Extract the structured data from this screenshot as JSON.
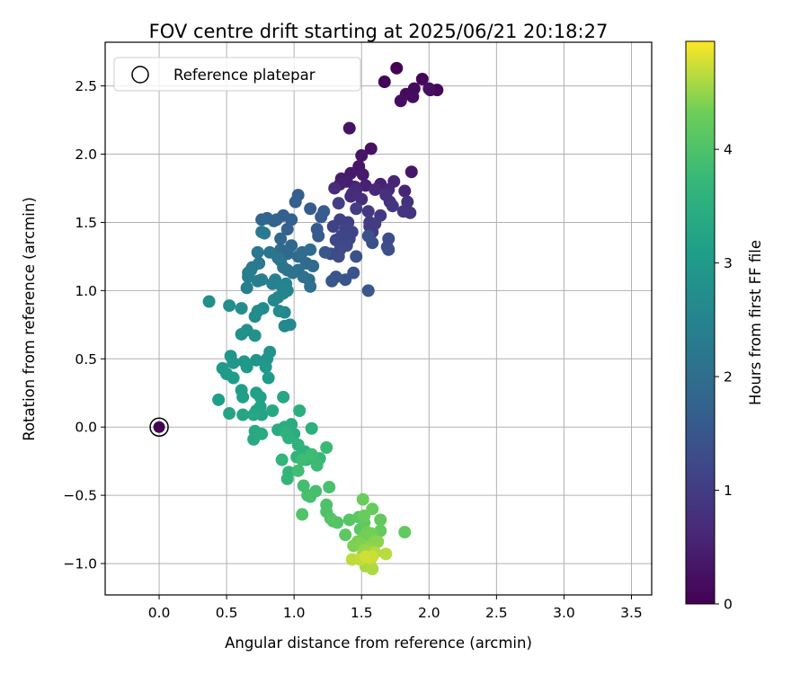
{
  "chart_data": {
    "type": "scatter",
    "title": "FOV centre drift starting at 2025/06/21 20:18:27",
    "xlabel": "Angular distance from reference (arcmin)",
    "ylabel": "Rotation from reference (arcmin)",
    "xlim": [
      -0.4,
      3.65
    ],
    "ylim": [
      -1.23,
      2.82
    ],
    "xticks": [
      "0.0",
      "0.5",
      "1.0",
      "1.5",
      "2.0",
      "2.5",
      "3.0",
      "3.5"
    ],
    "yticks": [
      "−1.0",
      "−0.5",
      "0.0",
      "0.5",
      "1.0",
      "1.5",
      "2.0",
      "2.5"
    ],
    "grid": true,
    "legend": {
      "location": "upper left",
      "entries": [
        "Reference platepar"
      ]
    },
    "colorbar": {
      "label": "Hours from first FF file",
      "range": [
        0,
        4.95
      ],
      "ticks": [
        "0",
        "1",
        "2",
        "3",
        "4"
      ],
      "colormap": "viridis"
    },
    "reference_point": {
      "x": 0.0,
      "y": 0.0,
      "c": 0.0
    },
    "points": [
      [
        1.76,
        2.63,
        0.02
      ],
      [
        1.67,
        2.53,
        0.05
      ],
      [
        1.95,
        2.55,
        0.08
      ],
      [
        2.06,
        2.47,
        0.1
      ],
      [
        2.01,
        2.47,
        0.12
      ],
      [
        1.89,
        2.48,
        0.14
      ],
      [
        1.83,
        2.44,
        0.17
      ],
      [
        1.88,
        2.42,
        0.19
      ],
      [
        1.79,
        2.39,
        0.21
      ],
      [
        2.0,
        2.48,
        0.24
      ],
      [
        1.57,
        2.04,
        0.26
      ],
      [
        1.41,
        2.19,
        0.28
      ],
      [
        1.5,
        1.99,
        0.31
      ],
      [
        1.48,
        1.91,
        0.33
      ],
      [
        1.87,
        1.87,
        0.35
      ],
      [
        1.42,
        1.86,
        0.38
      ],
      [
        1.51,
        1.85,
        0.4
      ],
      [
        1.35,
        1.82,
        0.42
      ],
      [
        1.39,
        1.8,
        0.45
      ],
      [
        1.34,
        1.78,
        0.47
      ],
      [
        1.45,
        1.76,
        0.49
      ],
      [
        1.53,
        1.77,
        0.51
      ],
      [
        1.64,
        1.78,
        0.53
      ],
      [
        1.74,
        1.8,
        0.56
      ],
      [
        1.82,
        1.73,
        0.58
      ],
      [
        1.7,
        1.74,
        0.6
      ],
      [
        1.6,
        1.74,
        0.63
      ],
      [
        1.46,
        1.74,
        0.65
      ],
      [
        1.42,
        1.69,
        0.67
      ],
      [
        1.3,
        1.75,
        0.7
      ],
      [
        1.43,
        1.71,
        0.72
      ],
      [
        1.5,
        1.67,
        0.74
      ],
      [
        1.71,
        1.65,
        0.77
      ],
      [
        1.68,
        1.7,
        0.79
      ],
      [
        1.84,
        1.65,
        0.81
      ],
      [
        1.83,
        1.59,
        0.83
      ],
      [
        1.86,
        1.57,
        0.85
      ],
      [
        1.81,
        1.58,
        0.87
      ],
      [
        1.73,
        1.62,
        0.89
      ],
      [
        1.64,
        1.55,
        0.91
      ],
      [
        1.55,
        1.58,
        0.93
      ],
      [
        1.56,
        1.5,
        0.95
      ],
      [
        1.56,
        1.47,
        0.97
      ],
      [
        1.58,
        1.43,
        0.99
      ],
      [
        1.6,
        1.49,
        1.01
      ],
      [
        1.46,
        1.6,
        1.03
      ],
      [
        1.33,
        1.64,
        1.05
      ],
      [
        1.4,
        1.5,
        1.07
      ],
      [
        1.34,
        1.52,
        1.09
      ],
      [
        1.29,
        1.47,
        1.11
      ],
      [
        1.38,
        1.45,
        1.13
      ],
      [
        1.43,
        1.43,
        1.15
      ],
      [
        1.35,
        1.4,
        1.17
      ],
      [
        1.41,
        1.38,
        1.19
      ],
      [
        1.31,
        1.37,
        1.21
      ],
      [
        1.39,
        1.33,
        1.23
      ],
      [
        1.34,
        1.3,
        1.25
      ],
      [
        1.27,
        1.27,
        1.27
      ],
      [
        1.33,
        1.25,
        1.29
      ],
      [
        1.7,
        1.38,
        1.31
      ],
      [
        1.69,
        1.32,
        1.33
      ],
      [
        1.7,
        1.3,
        1.35
      ],
      [
        1.58,
        1.35,
        1.37
      ],
      [
        1.55,
        1.4,
        1.39
      ],
      [
        1.46,
        1.25,
        1.41
      ],
      [
        1.44,
        1.13,
        1.43
      ],
      [
        1.38,
        1.08,
        1.45
      ],
      [
        1.31,
        1.1,
        1.47
      ],
      [
        1.28,
        1.07,
        1.49
      ],
      [
        1.55,
        1.0,
        1.51
      ],
      [
        1.23,
        1.28,
        1.53
      ],
      [
        1.18,
        1.4,
        1.55
      ],
      [
        1.17,
        1.45,
        1.57
      ],
      [
        1.2,
        1.54,
        1.59
      ],
      [
        1.12,
        1.6,
        1.61
      ],
      [
        1.22,
        1.58,
        1.63
      ],
      [
        1.03,
        1.7,
        1.65
      ],
      [
        1.01,
        1.65,
        1.67
      ],
      [
        0.92,
        1.55,
        1.69
      ],
      [
        0.98,
        1.52,
        1.71
      ],
      [
        0.95,
        1.45,
        1.73
      ],
      [
        0.87,
        1.52,
        1.75
      ],
      [
        0.85,
        1.51,
        1.77
      ],
      [
        0.8,
        1.53,
        1.79
      ],
      [
        0.76,
        1.52,
        1.81
      ],
      [
        0.9,
        1.38,
        1.83
      ],
      [
        0.98,
        1.33,
        1.85
      ],
      [
        0.9,
        1.3,
        1.87
      ],
      [
        0.95,
        1.27,
        1.89
      ],
      [
        1.03,
        1.25,
        1.91
      ],
      [
        1.09,
        1.2,
        1.93
      ],
      [
        1.14,
        1.18,
        1.95
      ],
      [
        1.12,
        1.3,
        1.97
      ],
      [
        1.06,
        1.28,
        1.99
      ],
      [
        1.03,
        1.15,
        2.01
      ],
      [
        1.11,
        1.08,
        2.03
      ],
      [
        1.07,
        1.1,
        2.05
      ],
      [
        1.12,
        1.03,
        2.07
      ],
      [
        0.99,
        1.13,
        2.09
      ],
      [
        0.95,
        1.15,
        2.11
      ],
      [
        0.92,
        1.17,
        2.13
      ],
      [
        0.9,
        1.22,
        2.15
      ],
      [
        0.88,
        1.24,
        2.17
      ],
      [
        0.82,
        1.28,
        2.19
      ],
      [
        0.73,
        1.28,
        2.21
      ],
      [
        0.76,
        1.43,
        2.23
      ],
      [
        0.78,
        1.42,
        2.25
      ],
      [
        0.74,
        1.2,
        2.27
      ],
      [
        0.69,
        1.17,
        2.29
      ],
      [
        0.68,
        1.15,
        2.31
      ],
      [
        0.66,
        1.13,
        2.33
      ],
      [
        0.66,
        1.1,
        2.35
      ],
      [
        0.76,
        1.08,
        2.37
      ],
      [
        0.73,
        1.07,
        2.39
      ],
      [
        0.65,
        1.02,
        2.41
      ],
      [
        0.84,
        1.05,
        2.43
      ],
      [
        0.86,
        1.08,
        2.45
      ],
      [
        0.91,
        1.03,
        2.47
      ],
      [
        0.94,
        1.05,
        2.49
      ],
      [
        0.95,
        1.0,
        2.51
      ],
      [
        0.92,
        0.98,
        2.53
      ],
      [
        0.88,
        0.95,
        2.55
      ],
      [
        0.85,
        0.93,
        2.57
      ],
      [
        0.93,
        0.84,
        2.59
      ],
      [
        0.97,
        0.75,
        2.61
      ],
      [
        0.93,
        0.74,
        2.63
      ],
      [
        0.89,
        0.85,
        2.65
      ],
      [
        0.77,
        0.87,
        2.67
      ],
      [
        0.73,
        0.85,
        2.69
      ],
      [
        0.71,
        0.81,
        2.71
      ],
      [
        0.61,
        0.87,
        2.73
      ],
      [
        0.52,
        0.89,
        2.75
      ],
      [
        0.37,
        0.92,
        2.77
      ],
      [
        0.65,
        0.71,
        2.79
      ],
      [
        0.61,
        0.68,
        2.81
      ],
      [
        0.71,
        0.67,
        2.83
      ],
      [
        0.82,
        0.55,
        2.85
      ],
      [
        0.8,
        0.5,
        2.87
      ],
      [
        0.72,
        0.49,
        2.89
      ],
      [
        0.53,
        0.52,
        2.91
      ],
      [
        0.55,
        0.47,
        2.93
      ],
      [
        0.63,
        0.48,
        2.95
      ],
      [
        0.65,
        0.44,
        2.97
      ],
      [
        0.79,
        0.44,
        2.99
      ],
      [
        0.81,
        0.36,
        3.01
      ],
      [
        0.47,
        0.43,
        3.03
      ],
      [
        0.5,
        0.39,
        3.05
      ],
      [
        0.55,
        0.36,
        3.07
      ],
      [
        0.44,
        0.2,
        3.09
      ],
      [
        0.62,
        0.22,
        3.11
      ],
      [
        0.61,
        0.27,
        3.13
      ],
      [
        0.72,
        0.25,
        3.15
      ],
      [
        0.75,
        0.22,
        3.17
      ],
      [
        0.75,
        0.15,
        3.19
      ],
      [
        0.72,
        0.12,
        3.21
      ],
      [
        0.76,
        0.09,
        3.23
      ],
      [
        0.52,
        0.1,
        3.25
      ],
      [
        0.62,
        0.09,
        3.27
      ],
      [
        0.7,
        0.09,
        3.29
      ],
      [
        0.92,
        0.22,
        3.31
      ],
      [
        0.84,
        0.12,
        3.33
      ],
      [
        0.71,
        -0.03,
        3.35
      ],
      [
        0.7,
        -0.09,
        3.37
      ],
      [
        0.76,
        -0.05,
        3.39
      ],
      [
        0.88,
        -0.02,
        3.41
      ],
      [
        0.93,
        0.0,
        3.43
      ],
      [
        0.98,
        0.02,
        3.45
      ],
      [
        1.0,
        -0.05,
        3.47
      ],
      [
        1.04,
        0.12,
        3.49
      ],
      [
        1.13,
        -0.01,
        3.51
      ],
      [
        0.94,
        -0.04,
        3.53
      ],
      [
        0.96,
        -0.08,
        3.55
      ],
      [
        1.03,
        -0.13,
        3.57
      ],
      [
        1.08,
        -0.18,
        3.59
      ],
      [
        1.02,
        -0.22,
        3.61
      ],
      [
        0.91,
        -0.24,
        3.63
      ],
      [
        0.96,
        -0.33,
        3.65
      ],
      [
        0.95,
        -0.38,
        3.67
      ],
      [
        1.17,
        -0.26,
        3.69
      ],
      [
        1.09,
        -0.24,
        3.71
      ],
      [
        1.14,
        -0.22,
        3.73
      ],
      [
        1.19,
        -0.23,
        3.75
      ],
      [
        1.24,
        -0.15,
        3.77
      ],
      [
        1.17,
        -0.28,
        3.79
      ],
      [
        1.13,
        -0.2,
        3.81
      ],
      [
        1.06,
        -0.24,
        3.83
      ],
      [
        1.03,
        -0.32,
        3.85
      ],
      [
        1.07,
        -0.43,
        3.87
      ],
      [
        1.1,
        -0.5,
        3.89
      ],
      [
        1.16,
        -0.47,
        3.91
      ],
      [
        1.12,
        -0.51,
        3.93
      ],
      [
        1.26,
        -0.44,
        3.95
      ],
      [
        1.24,
        -0.57,
        3.97
      ],
      [
        1.24,
        -0.62,
        3.99
      ],
      [
        1.27,
        -0.67,
        4.01
      ],
      [
        1.06,
        -0.64,
        4.03
      ],
      [
        1.32,
        -0.7,
        4.05
      ],
      [
        1.29,
        -0.69,
        4.07
      ],
      [
        1.41,
        -0.68,
        4.09
      ],
      [
        1.48,
        -0.66,
        4.11
      ],
      [
        1.49,
        -0.75,
        4.13
      ],
      [
        1.38,
        -0.79,
        4.15
      ],
      [
        1.52,
        -0.7,
        4.17
      ],
      [
        1.82,
        -0.77,
        4.19
      ],
      [
        1.64,
        -0.68,
        4.21
      ],
      [
        1.64,
        -0.76,
        4.23
      ],
      [
        1.58,
        -0.6,
        4.25
      ],
      [
        1.52,
        -0.65,
        4.27
      ],
      [
        1.51,
        -0.53,
        4.29
      ],
      [
        1.54,
        -0.77,
        4.31
      ],
      [
        1.52,
        -0.8,
        4.33
      ],
      [
        1.57,
        -0.78,
        4.35
      ],
      [
        1.47,
        -0.84,
        4.37
      ],
      [
        1.44,
        -0.87,
        4.39
      ],
      [
        1.5,
        -0.86,
        4.41
      ],
      [
        1.59,
        -0.84,
        4.43
      ],
      [
        1.62,
        -0.84,
        4.45
      ],
      [
        1.56,
        -0.89,
        4.47
      ],
      [
        1.52,
        -0.9,
        4.49
      ],
      [
        1.51,
        -0.93,
        4.51
      ],
      [
        1.55,
        -0.91,
        4.53
      ],
      [
        1.53,
        -0.96,
        4.55
      ],
      [
        1.56,
        -0.99,
        4.57
      ],
      [
        1.53,
        -1.02,
        4.59
      ],
      [
        1.58,
        -1.04,
        4.61
      ],
      [
        1.6,
        -0.92,
        4.63
      ],
      [
        1.68,
        -0.93,
        4.65
      ],
      [
        1.43,
        -0.97,
        4.67
      ],
      [
        1.49,
        -0.97,
        4.69
      ],
      [
        1.56,
        -0.96,
        4.71
      ],
      [
        1.58,
        -0.95,
        4.73
      ],
      [
        1.53,
        -0.95,
        4.75
      ]
    ]
  }
}
